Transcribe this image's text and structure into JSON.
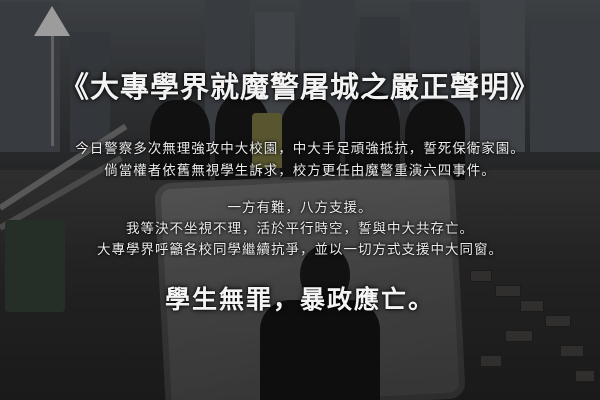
{
  "title": "《大專學界就魔警屠城之嚴正聲明》",
  "statement": [
    "今日警察多次無理強攻中大校園，中大手足頑強抵抗，誓死保衛家園。",
    "倘當權者依舊無視學生訴求，校方更任由魔警重演六四事件。",
    "一方有難，八方支援。",
    "我等決不坐視不理，活於平行時空，誓與中大共存亡。",
    "大專學界呼籲各校同學繼續抗爭，並以一切方式支援中大同窗。"
  ],
  "slogan": "學生無罪，暴政應亡。",
  "colors": {
    "text": "#f2f2f2",
    "overlay": "#000000"
  }
}
